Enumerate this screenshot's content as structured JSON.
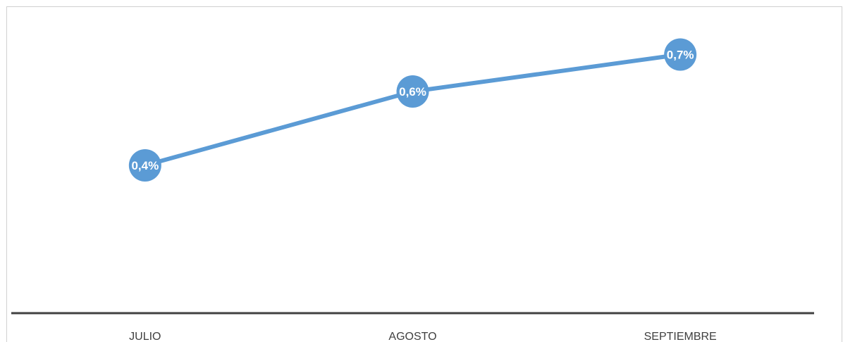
{
  "chart_data": {
    "type": "line",
    "categories": [
      "JULIO",
      "AGOSTO",
      "SEPTIEMBRE"
    ],
    "values": [
      0.4,
      0.6,
      0.7
    ],
    "data_labels": [
      "0,4%",
      "0,6%",
      "0,7%"
    ],
    "ylim": [
      0,
      1
    ],
    "grid": false,
    "line_color": "#5b9bd5",
    "axis_color": "#404040"
  }
}
